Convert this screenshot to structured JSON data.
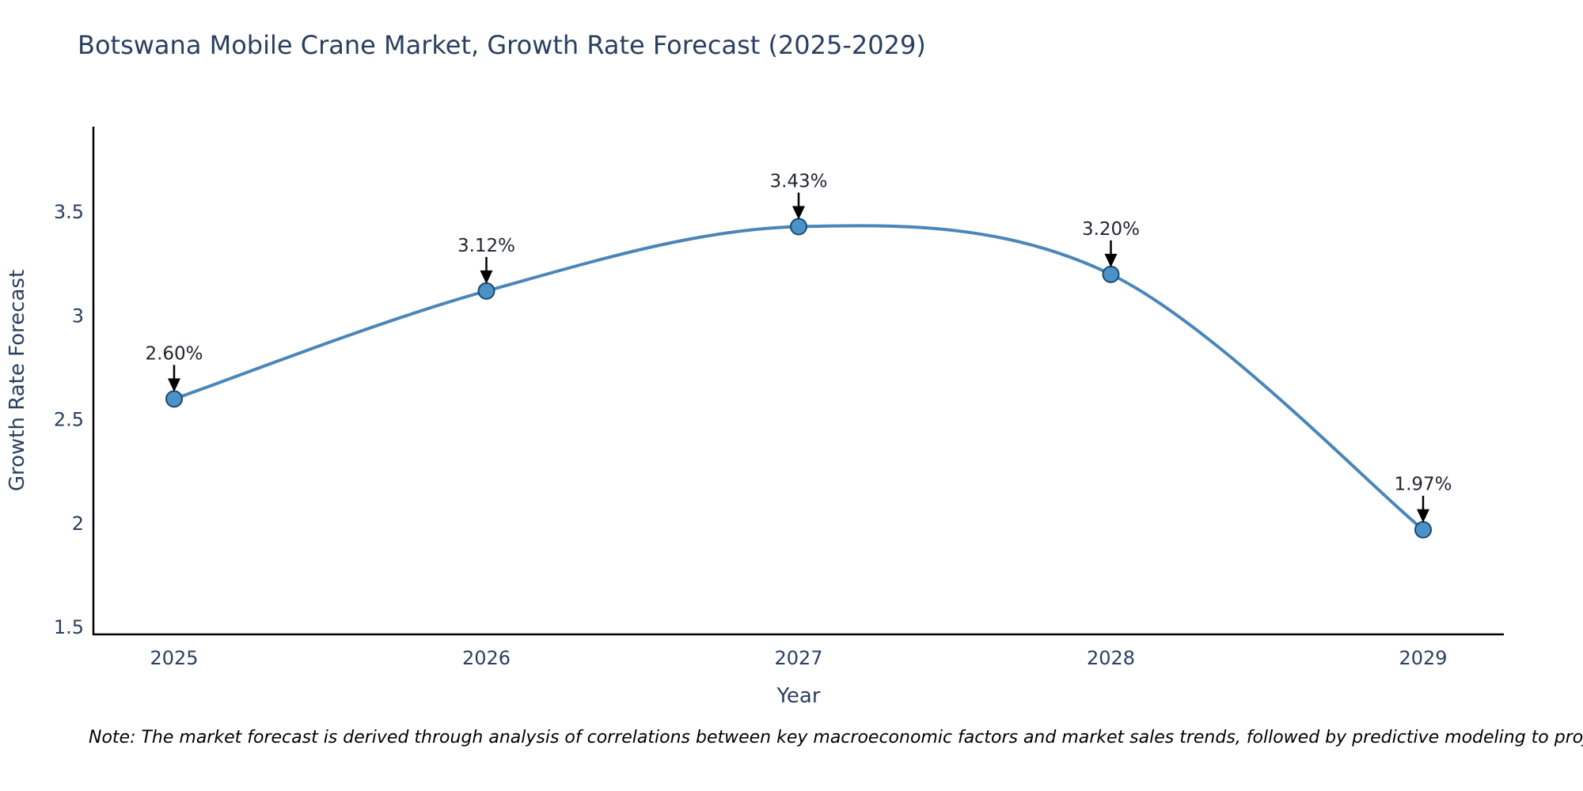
{
  "title": "Botswana Mobile Crane Market, Growth Rate Forecast (2025-2029)",
  "note": "Note: The market forecast is derived through analysis of correlations between key macroeconomic factors and market sales trends, followed by predictive modeling to project future sales",
  "chart_data": {
    "type": "line",
    "line_shape": "spline",
    "title": "Botswana Mobile Crane Market, Growth Rate Forecast (2025-2029)",
    "categories": [
      "2025",
      "2026",
      "2027",
      "2028",
      "2029"
    ],
    "series": [
      {
        "name": "Growth Rate Forecast",
        "values": [
          2.6,
          3.12,
          3.43,
          3.2,
          1.97
        ],
        "point_labels": [
          "2.60%",
          "3.12%",
          "3.43%",
          "3.20%",
          "1.97%"
        ]
      }
    ],
    "xlabel": "Year",
    "ylabel": "Growth Rate Forecast",
    "ylim": [
      1.466,
      3.912
    ],
    "yticks": [
      1.5,
      2,
      2.5,
      3,
      3.5
    ],
    "grid": false,
    "legend_position": "none",
    "annotations_style": "value label with down arrow to each point",
    "colors": {
      "line": "#4a86b8",
      "marker_fill": "#4b92c8",
      "marker_edge": "#1b4a6e",
      "arrow": "#000000",
      "axis": "#000000",
      "title_text": "#2a3f5f",
      "tick_text": "#2a3f5f",
      "axis_title_text": "#2a3f5f",
      "annotation_text": "#1f2430",
      "background": "#ffffff"
    }
  }
}
